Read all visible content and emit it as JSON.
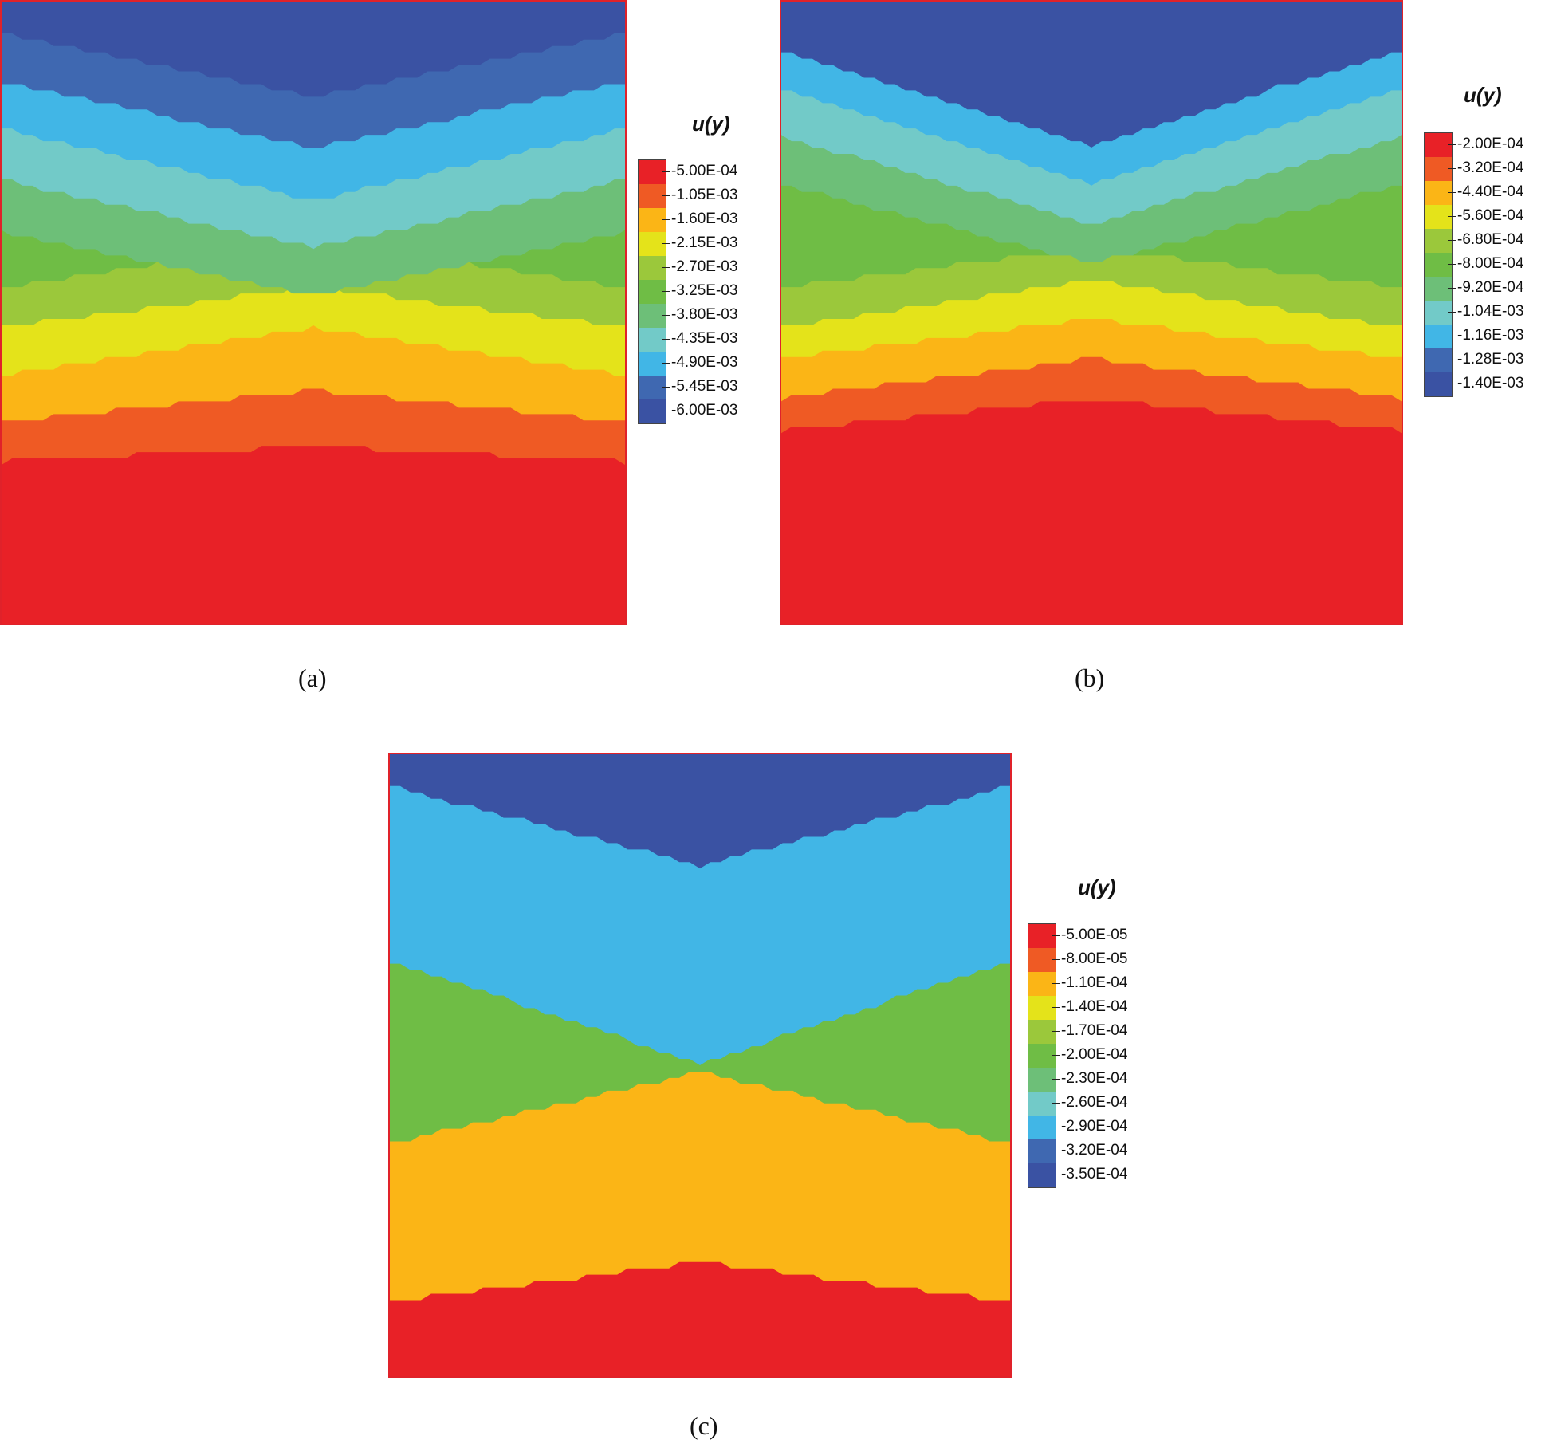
{
  "panels": [
    {
      "id": "a",
      "caption": "(a)",
      "legend_title": "u(y)",
      "levels": [
        "-5.00E-04",
        "-1.05E-03",
        "-1.60E-03",
        "-2.15E-03",
        "-2.70E-03",
        "-3.25E-03",
        "-3.80E-03",
        "-4.35E-03",
        "-4.90E-03",
        "-5.45E-03",
        "-6.00E-03"
      ]
    },
    {
      "id": "b",
      "caption": "(b)",
      "legend_title": "u(y)",
      "levels": [
        "-2.00E-04",
        "-3.20E-04",
        "-4.40E-04",
        "-5.60E-04",
        "-6.80E-04",
        "-8.00E-04",
        "-9.20E-04",
        "-1.04E-03",
        "-1.16E-03",
        "-1.28E-03",
        "-1.40E-03"
      ]
    },
    {
      "id": "c",
      "caption": "(c)",
      "legend_title": "u(y)",
      "levels": [
        "-5.00E-05",
        "-8.00E-05",
        "-1.10E-04",
        "-1.40E-04",
        "-1.70E-04",
        "-2.00E-04",
        "-2.30E-04",
        "-2.60E-04",
        "-2.90E-04",
        "-3.20E-04",
        "-3.50E-04"
      ]
    }
  ],
  "colors": [
    "#e82127",
    "#ef5a24",
    "#fbb516",
    "#e4e31a",
    "#9bc83b",
    "#6fbd45",
    "#6dbf78",
    "#72cac8",
    "#41b6e6",
    "#3f68b1",
    "#3a52a3"
  ]
}
